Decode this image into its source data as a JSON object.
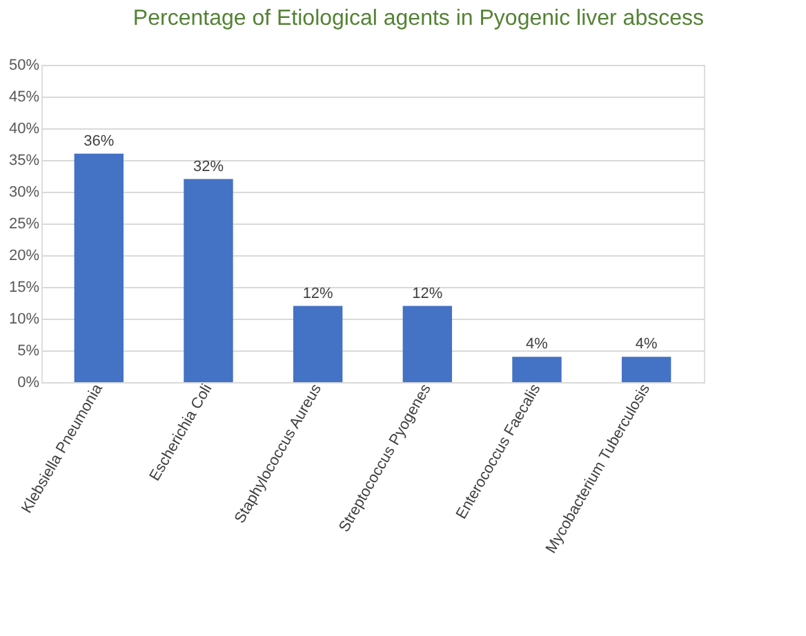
{
  "chart_data": {
    "type": "bar",
    "title": "Percentage of Etiological agents in Pyogenic liver abscess",
    "categories": [
      "Klebsiella Pneumonia",
      "Escherichia Coli",
      "Staphylococcus Aureus",
      "Streptococcus Pyogenes",
      "Enterococcus Faecalis",
      "Mycobacterium Tuberculosis"
    ],
    "series": [
      {
        "color": "#4472c4",
        "values": [
          36,
          32,
          12,
          12,
          4,
          4
        ]
      }
    ],
    "value_labels": [
      "36%",
      "32%",
      "12%",
      "12%",
      "4%",
      "4%"
    ],
    "ylim": [
      0,
      50
    ],
    "yticks": [
      {
        "value": 0,
        "label": "0%"
      },
      {
        "value": 5,
        "label": "5%"
      },
      {
        "value": 10,
        "label": "10%"
      },
      {
        "value": 15,
        "label": "15%"
      },
      {
        "value": 20,
        "label": "20%"
      },
      {
        "value": 25,
        "label": "25%"
      },
      {
        "value": 30,
        "label": "30%"
      },
      {
        "value": 35,
        "label": "35%"
      },
      {
        "value": 40,
        "label": "40%"
      },
      {
        "value": 45,
        "label": "45%"
      },
      {
        "value": 50,
        "label": "50%"
      }
    ],
    "grid": "y"
  }
}
